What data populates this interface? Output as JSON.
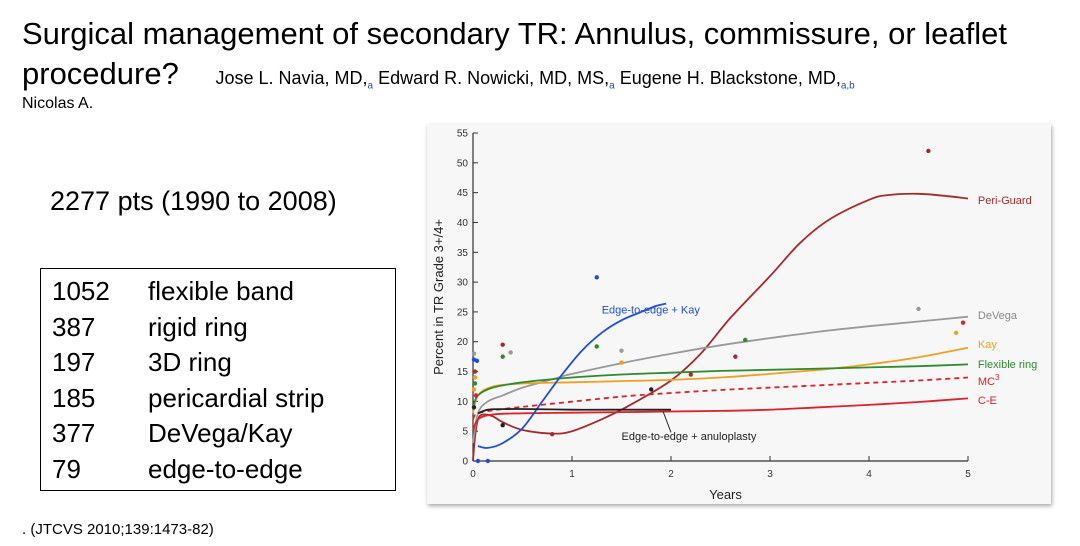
{
  "slide": {
    "title": "Surgical management of secondary TR: Annulus, commissure, or leaflet procedure?",
    "authors": [
      {
        "name": "Jose L. Navia, MD,",
        "sup": "a"
      },
      {
        "name": "Edward R. Nowicki, MD, MS,",
        "sup": "a"
      },
      {
        "name": "Eugene H. Blackstone, MD,",
        "sup": "a,b"
      }
    ],
    "author_extra": "Nicolas A.",
    "patients": "2277 pts  (1990 to 2008)",
    "procedures": [
      {
        "count": "1052",
        "label": "flexible  band"
      },
      {
        "count": "387",
        "label": "rigid  ring"
      },
      {
        "count": "197",
        "label": "3D ring"
      },
      {
        "count": "185",
        "label": "pericardial strip"
      },
      {
        "count": "377",
        "label": "DeVega/Kay"
      },
      {
        "count": "79",
        "label": "edge-to-edge"
      }
    ],
    "citation": ". (JTCVS 2010;139:1473-82)"
  },
  "chart_data": {
    "type": "line",
    "title": "",
    "xlabel": "Years",
    "ylabel": "Percent in TR Grade 3+/4+",
    "xlim": [
      0,
      5
    ],
    "ylim": [
      0,
      55
    ],
    "xticks": [
      0,
      1,
      2,
      3,
      4,
      5
    ],
    "yticks": [
      0,
      5,
      10,
      15,
      20,
      25,
      30,
      35,
      40,
      45,
      50,
      55
    ],
    "series": [
      {
        "name": "Peri-Guard",
        "color": "#a52a2a",
        "style": "solid",
        "x": [
          0,
          0.02,
          0.05,
          0.1,
          0.2,
          0.3,
          0.5,
          0.8,
          1.0,
          1.3,
          1.6,
          2.0,
          2.3,
          2.6,
          3.0,
          3.3,
          3.6,
          4.0,
          4.2,
          4.5,
          4.8,
          5.0
        ],
        "y": [
          0,
          4,
          7,
          7.8,
          7.5,
          6.5,
          5.2,
          4.6,
          5.0,
          7.0,
          9.5,
          13.5,
          18,
          24,
          31,
          36.5,
          40.5,
          43.8,
          44.6,
          44.8,
          44.4,
          44.0
        ]
      },
      {
        "name": "DeVega",
        "color": "#999999",
        "style": "solid",
        "x": [
          0,
          0.05,
          0.15,
          0.3,
          0.5,
          0.8,
          1.0,
          1.5,
          2.0,
          2.5,
          3.0,
          3.5,
          4.0,
          4.5,
          5.0
        ],
        "y": [
          3,
          8,
          10,
          11,
          12.3,
          13.7,
          14.6,
          16.4,
          18,
          19.4,
          20.6,
          21.7,
          22.6,
          23.4,
          24.2
        ]
      },
      {
        "name": "Kay",
        "color": "#f0a020",
        "style": "solid",
        "x": [
          0,
          0.05,
          0.2,
          0.5,
          1.0,
          1.5,
          2.0,
          2.5,
          3.0,
          3.5,
          4.0,
          4.5,
          5.0
        ],
        "y": [
          8,
          11,
          12.5,
          13,
          13.2,
          13.4,
          13.6,
          14,
          14.6,
          15.3,
          16.2,
          17.4,
          19
        ]
      },
      {
        "name": "Flexible ring",
        "color": "#2e8b2e",
        "style": "solid",
        "x": [
          0,
          0.05,
          0.2,
          0.5,
          1.0,
          1.5,
          2.0,
          2.5,
          3.0,
          3.5,
          4.0,
          4.5,
          5.0
        ],
        "y": [
          9,
          11,
          12.3,
          13.2,
          14,
          14.5,
          14.8,
          15.1,
          15.3,
          15.5,
          15.7,
          15.9,
          16.2
        ]
      },
      {
        "name": "MC3",
        "color": "#e0202a",
        "style": "dashed",
        "x": [
          0,
          0.05,
          0.3,
          0.8,
          1.5,
          2.0,
          2.5,
          3.0,
          3.5,
          4.0,
          4.5,
          5.0
        ],
        "y": [
          7,
          8,
          8.7,
          9.6,
          10.8,
          11.4,
          11.9,
          12.3,
          12.7,
          13.1,
          13.5,
          14
        ]
      },
      {
        "name": "C-E",
        "color": "#e0202a",
        "style": "solid",
        "x": [
          0,
          0.05,
          0.2,
          0.5,
          1.0,
          1.5,
          2.0,
          2.5,
          3.0,
          3.5,
          4.0,
          4.5,
          5.0
        ],
        "y": [
          5,
          7,
          7.8,
          8,
          8.1,
          8.2,
          8.3,
          8.4,
          8.6,
          9,
          9.4,
          9.9,
          10.5
        ]
      },
      {
        "name": "Edge-to-edge + Kay",
        "color": "#1f4fd8",
        "style": "solid",
        "x": [
          0.05,
          0.15,
          0.3,
          0.5,
          0.7,
          0.9,
          1.1,
          1.3,
          1.5,
          1.7,
          1.85,
          1.95
        ],
        "y": [
          2.5,
          2.2,
          3.0,
          5.5,
          10,
          14.5,
          18.5,
          21.5,
          23.6,
          25.0,
          26.0,
          26.4
        ]
      },
      {
        "name": "Edge-to-edge + anuloplasty",
        "color": "#222222",
        "style": "solid",
        "x": [
          0.05,
          0.15,
          0.3,
          0.6,
          1.0,
          1.4,
          2.0
        ],
        "y": [
          8,
          8.6,
          8.7,
          8.7,
          8.6,
          8.6,
          8.6
        ]
      }
    ],
    "points": [
      {
        "x": 0.01,
        "y": 12,
        "series": "Kay"
      },
      {
        "x": 0.02,
        "y": 14,
        "series": "Kay"
      },
      {
        "x": 0.01,
        "y": 17,
        "series": "Edge-to-edge + Kay"
      },
      {
        "x": 0.04,
        "y": 16.8,
        "series": "Edge-to-edge + Kay"
      },
      {
        "x": 0.02,
        "y": 13,
        "series": "Flexible ring"
      },
      {
        "x": 0.03,
        "y": 11,
        "series": "MC3"
      },
      {
        "x": 0.01,
        "y": 9,
        "series": "Edge-to-edge + anuloplasty"
      },
      {
        "x": 0.02,
        "y": 15,
        "series": "Peri-Guard"
      },
      {
        "x": 0.01,
        "y": 18,
        "series": "DeVega"
      },
      {
        "x": 0.05,
        "y": 0,
        "series": "Edge-to-edge + Kay"
      },
      {
        "x": 0.15,
        "y": 0,
        "series": "Edge-to-edge + Kay"
      },
      {
        "x": 0.3,
        "y": 19.5,
        "series": "Peri-Guard"
      },
      {
        "x": 0.3,
        "y": 17.5,
        "series": "Flexible ring"
      },
      {
        "x": 0.38,
        "y": 18.2,
        "series": "DeVega"
      },
      {
        "x": 0.3,
        "y": 6,
        "series": "Edge-to-edge + anuloplasty"
      },
      {
        "x": 0.8,
        "y": 4.5,
        "series": "Peri-Guard"
      },
      {
        "x": 1.25,
        "y": 30.8,
        "series": "Edge-to-edge + Kay"
      },
      {
        "x": 1.25,
        "y": 19.2,
        "series": "Flexible ring"
      },
      {
        "x": 1.5,
        "y": 18.5,
        "series": "DeVega"
      },
      {
        "x": 1.5,
        "y": 16.5,
        "series": "Kay"
      },
      {
        "x": 1.8,
        "y": 12,
        "series": "Edge-to-edge + anuloplasty"
      },
      {
        "x": 2.2,
        "y": 14.5,
        "series": "Peri-Guard"
      },
      {
        "x": 2.65,
        "y": 17.5,
        "series": "Peri-Guard"
      },
      {
        "x": 2.75,
        "y": 20.3,
        "series": "Flexible ring"
      },
      {
        "x": 4.6,
        "y": 52,
        "series": "Peri-Guard"
      },
      {
        "x": 4.5,
        "y": 25.5,
        "series": "DeVega"
      },
      {
        "x": 4.88,
        "y": 21.5,
        "series": "Kay"
      },
      {
        "x": 4.95,
        "y": 23.2,
        "series": "C-E"
      }
    ],
    "labels": [
      {
        "text": "Peri-Guard",
        "color": "#a52a2a",
        "x": 5.1,
        "y": 43.8
      },
      {
        "text": "DeVega",
        "color": "#888888",
        "x": 5.1,
        "y": 24.5
      },
      {
        "text": "Kay",
        "color": "#f0a020",
        "x": 5.1,
        "y": 19.6
      },
      {
        "text": "Flexible ring",
        "color": "#2e8b2e",
        "x": 5.1,
        "y": 16.3
      },
      {
        "text": "MC",
        "sup": "3",
        "color": "#e0202a",
        "x": 5.1,
        "y": 13.4
      },
      {
        "text": "C-E",
        "color": "#e0202a",
        "x": 5.1,
        "y": 10.2
      },
      {
        "text": "Edge-to-edge + Kay",
        "color": "#1f4fd8",
        "x": 1.3,
        "y": 25.4
      },
      {
        "text": "Edge-to-edge + anuloplasty",
        "color": "#222222",
        "x": 1.5,
        "y": 4.2
      }
    ]
  }
}
